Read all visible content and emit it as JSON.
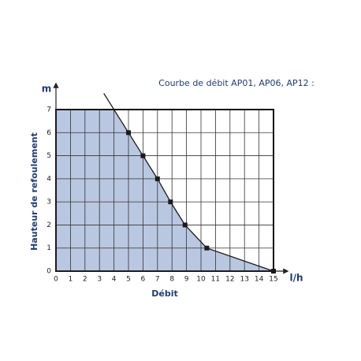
{
  "chart_data": {
    "type": "line",
    "title": "Courbe de débit AP01, AP06, AP12 :",
    "x_label": "Débit",
    "x_unit": "l/h",
    "y_label": "Hauteur de refoulement",
    "y_unit": "m",
    "series": [
      {
        "x": [
          3.3,
          5,
          6,
          7,
          7.9,
          8.9,
          10.4,
          15
        ],
        "values": [
          7.7,
          6,
          5,
          4,
          3,
          2,
          1,
          0
        ],
        "color": "#1a1a1a"
      }
    ],
    "area_color": "#b9c7e1",
    "xlim": [
      0,
      15
    ],
    "ylim": [
      0,
      7
    ],
    "xticks": [
      0,
      1,
      2,
      3,
      4,
      5,
      6,
      7,
      8,
      9,
      10,
      11,
      12,
      13,
      14,
      15
    ],
    "yticks": [
      0,
      1,
      2,
      3,
      4,
      5,
      6,
      7
    ],
    "grid": true
  }
}
